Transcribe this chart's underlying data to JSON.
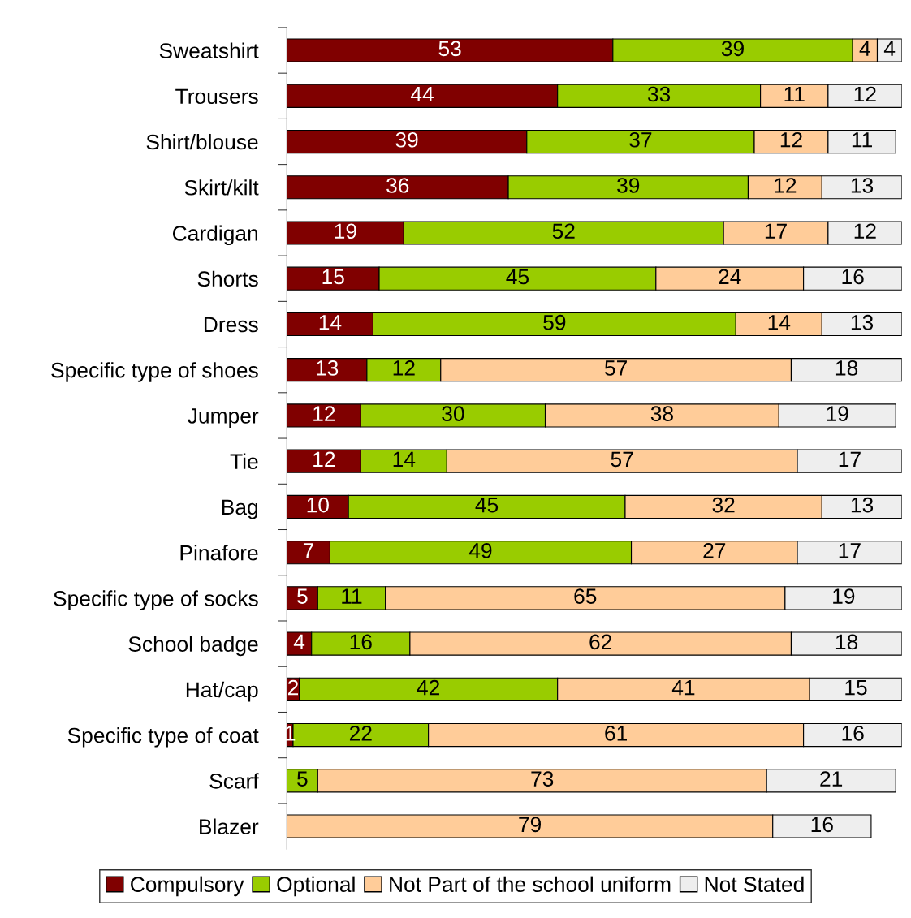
{
  "chart_data": {
    "type": "bar",
    "orientation": "horizontal",
    "stacked": true,
    "data_labels": true,
    "grid": false,
    "legend": "bottom",
    "tick_labels": "y",
    "categories": [
      "Sweatshirt",
      "Trousers",
      "Shirt/blouse",
      "Skirt/kilt",
      "Cardigan",
      "Shorts",
      "Dress",
      "Specific type of shoes",
      "Jumper",
      "Tie",
      "Bag",
      "Pinafore",
      "Specific type of socks",
      "School badge",
      "Hat/cap",
      "Specific type of coat",
      "Scarf",
      "Blazer"
    ],
    "series": [
      {
        "name": "Compulsory",
        "color": "#800000",
        "values": [
          53,
          44,
          39,
          36,
          19,
          15,
          14,
          13,
          12,
          12,
          10,
          7,
          5,
          4,
          2,
          1,
          null,
          null
        ]
      },
      {
        "name": "Optional",
        "color": "#99cc00",
        "values": [
          39,
          33,
          37,
          39,
          52,
          45,
          59,
          12,
          30,
          14,
          45,
          49,
          11,
          16,
          42,
          22,
          5,
          null
        ]
      },
      {
        "name": "Not Part of the school uniform",
        "color": "#ffcc99",
        "values": [
          4,
          11,
          12,
          12,
          17,
          24,
          14,
          57,
          38,
          57,
          32,
          27,
          65,
          62,
          41,
          61,
          73,
          79
        ]
      },
      {
        "name": "Not Stated",
        "color": "#eeeeee",
        "values": [
          4,
          12,
          11,
          13,
          12,
          16,
          13,
          18,
          19,
          17,
          13,
          17,
          19,
          18,
          15,
          16,
          21,
          16
        ]
      }
    ]
  }
}
